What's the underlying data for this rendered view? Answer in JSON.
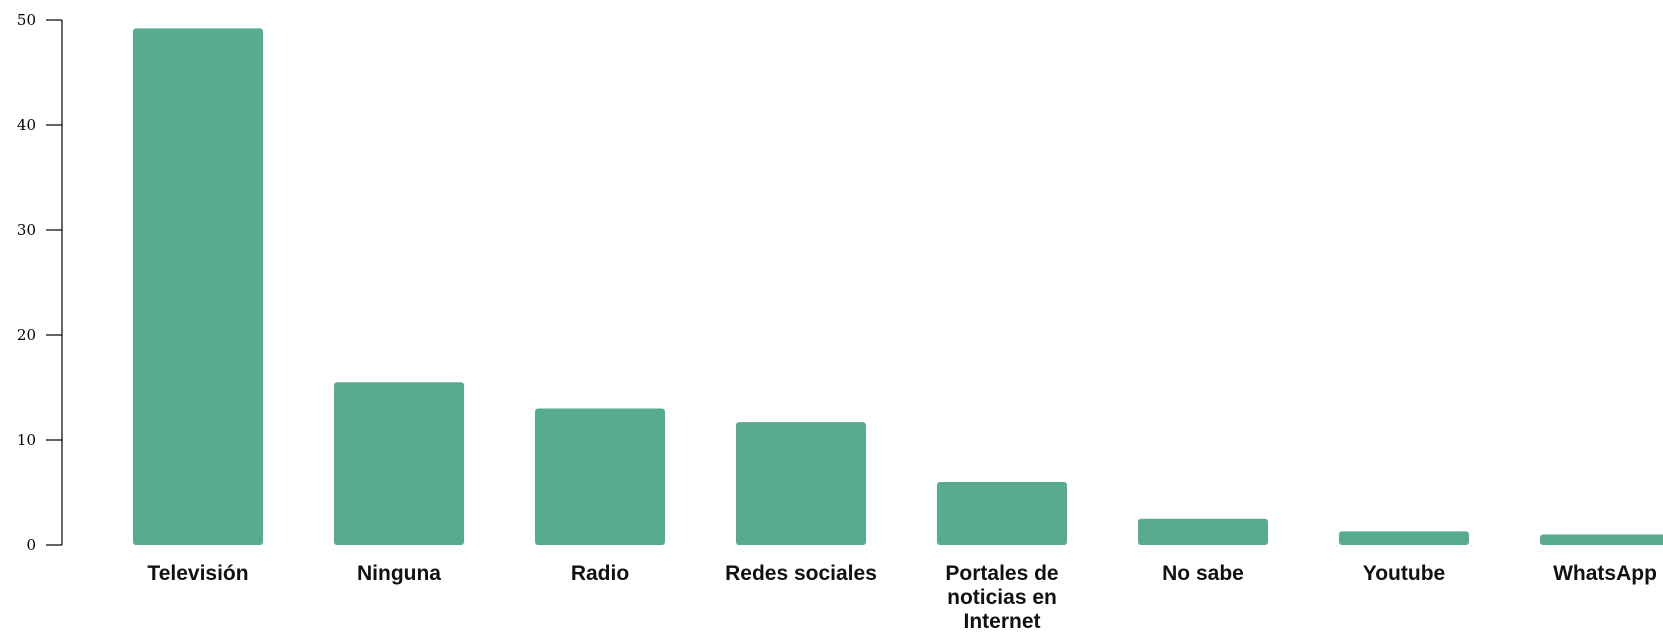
{
  "chart_data": {
    "type": "bar",
    "categories": [
      [
        "Televisión"
      ],
      [
        "Ninguna"
      ],
      [
        "Radio"
      ],
      [
        "Redes sociales"
      ],
      [
        "Portales de",
        "noticias en",
        "Internet"
      ],
      [
        "No sabe"
      ],
      [
        "Youtube"
      ],
      [
        "WhatsApp"
      ]
    ],
    "values": [
      49.2,
      15.5,
      13.0,
      11.7,
      6.0,
      2.5,
      1.3,
      1.0
    ],
    "ylim": [
      0,
      50
    ],
    "yticks": [
      0,
      10,
      20,
      30,
      40,
      50
    ],
    "bar_color": "#57ab90",
    "axis_color": "#000000",
    "title": "",
    "xlabel": "",
    "ylabel": "",
    "grid": false
  }
}
